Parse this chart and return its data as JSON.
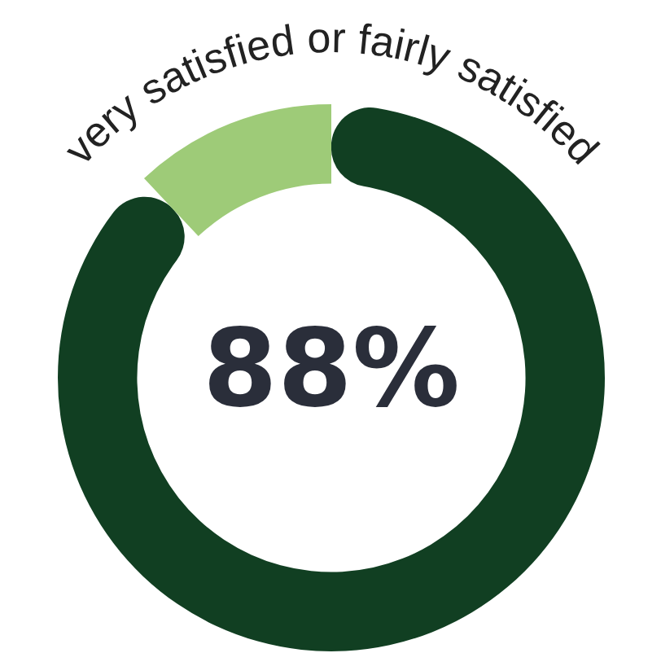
{
  "chart_data": {
    "type": "donut",
    "title": "very satisfied or fairly satisfied",
    "categories": [
      null,
      null
    ],
    "values": [
      88,
      12
    ],
    "colors": [
      "#113f22",
      "#9ecb78"
    ],
    "value_labels": [
      "88%",
      null
    ]
  }
}
